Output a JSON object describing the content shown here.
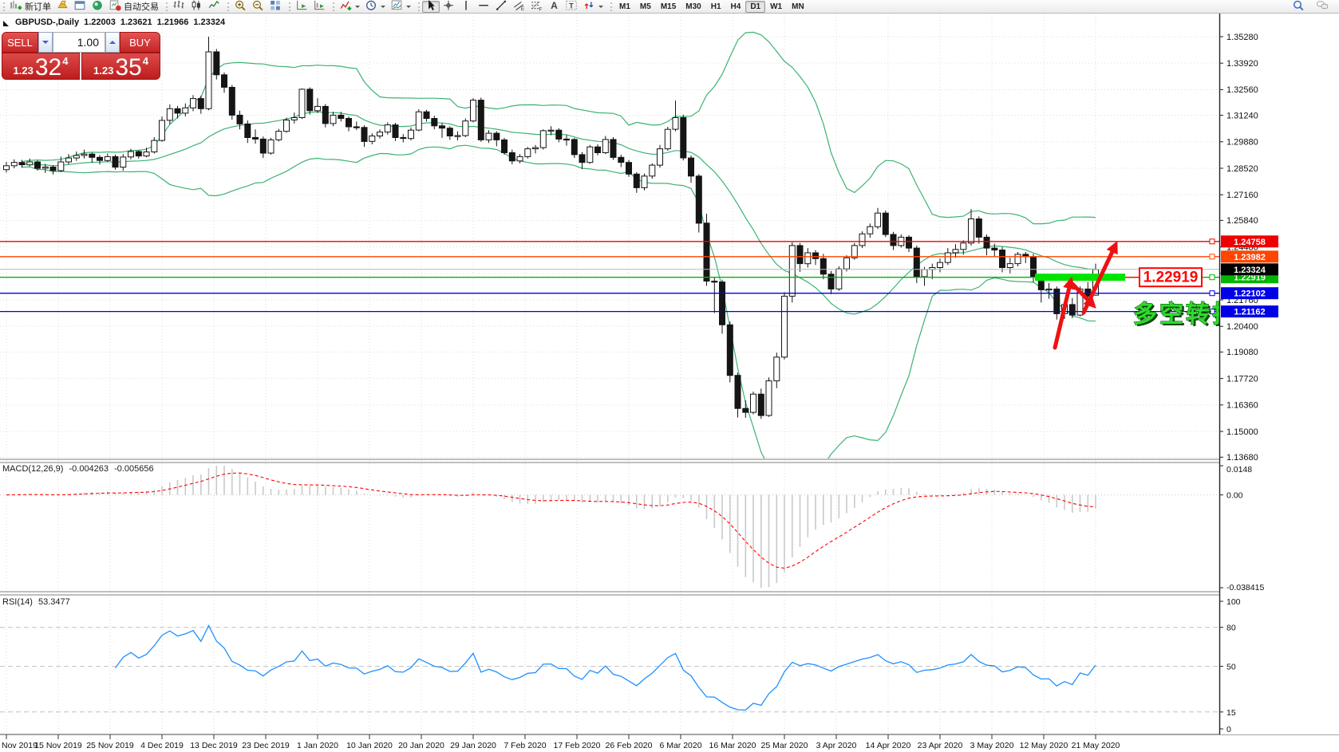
{
  "toolbar": {
    "groups": [
      {
        "items": [
          {
            "name": "new-order-button",
            "glyph": "new-order",
            "label": "新订单"
          },
          {
            "name": "market-button",
            "glyph": "gold"
          },
          {
            "name": "charts-window-button",
            "glyph": "window"
          },
          {
            "name": "news-button",
            "glyph": "sound"
          },
          {
            "name": "autotrading-button",
            "glyph": "autotrade",
            "label": "自动交易"
          }
        ]
      },
      {
        "items": [
          {
            "name": "bar-chart-button",
            "glyph": "bars"
          },
          {
            "name": "candlestick-chart-button",
            "glyph": "candles"
          },
          {
            "name": "line-chart-button",
            "glyph": "linechart"
          }
        ]
      },
      {
        "items": [
          {
            "name": "zoom-in-button",
            "glyph": "zoom-in"
          },
          {
            "name": "zoom-out-button",
            "glyph": "zoom-out"
          },
          {
            "name": "tile-windows-button",
            "glyph": "tile"
          }
        ]
      },
      {
        "items": [
          {
            "name": "auto-scroll-button",
            "glyph": "autoscroll"
          },
          {
            "name": "chart-shift-button",
            "glyph": "chartshift"
          }
        ]
      },
      {
        "items": [
          {
            "name": "indicators-button",
            "glyph": "indicator",
            "dropdown": true
          },
          {
            "name": "periods-button",
            "glyph": "clock",
            "dropdown": true
          },
          {
            "name": "templates-button",
            "glyph": "template",
            "dropdown": true
          }
        ]
      },
      {
        "items": [
          {
            "name": "cursor-tool-button",
            "glyph": "cursor",
            "active": true
          },
          {
            "name": "crosshair-tool-button",
            "glyph": "crosshair"
          },
          {
            "name": "vertical-line-tool-button",
            "glyph": "vline"
          },
          {
            "name": "horizontal-line-tool-button",
            "glyph": "hline"
          },
          {
            "name": "trendline-tool-button",
            "glyph": "trendline"
          },
          {
            "name": "equidistant-channel-tool-button",
            "glyph": "channel"
          },
          {
            "name": "fibonacci-tool-button",
            "glyph": "fibo"
          },
          {
            "name": "text-tool-button",
            "glyph": "text"
          },
          {
            "name": "text-label-tool-button",
            "glyph": "textlabel"
          },
          {
            "name": "arrows-tool-button",
            "glyph": "arrows",
            "dropdown": true
          }
        ]
      }
    ],
    "timeframes": [
      "M1",
      "M5",
      "M15",
      "M30",
      "H1",
      "H4",
      "D1",
      "W1",
      "MN"
    ],
    "active_timeframe": "D1",
    "right_icons": [
      {
        "name": "search-button",
        "glyph": "search"
      },
      {
        "name": "chat-button",
        "glyph": "chat"
      }
    ]
  },
  "symbol_bar": {
    "symbol": "GBPUSD-,Daily",
    "open": "1.22003",
    "high": "1.23621",
    "low": "1.21966",
    "close": "1.23324"
  },
  "trade_panel": {
    "sell_label": "SELL",
    "buy_label": "BUY",
    "volume": "1.00",
    "sell_price": {
      "small": "1.23",
      "big": "32",
      "sup": "4"
    },
    "buy_price": {
      "small": "1.23",
      "big": "35",
      "sup": "4"
    }
  },
  "chart_data": {
    "type": "candlestick",
    "title": "GBPUSD Daily with Bollinger Bands, MACD, RSI",
    "x_ticks": [
      "Nov 2019",
      "15 Nov 2019",
      "25 Nov 2019",
      "4 Dec 2019",
      "13 Dec 2019",
      "23 Dec 2019",
      "1 Jan 2020",
      "10 Jan 2020",
      "20 Jan 2020",
      "29 Jan 2020",
      "7 Feb 2020",
      "17 Feb 2020",
      "26 Feb 2020",
      "6 Mar 2020",
      "16 Mar 2020",
      "25 Mar 2020",
      "3 Apr 2020",
      "14 Apr 2020",
      "23 Apr 2020",
      "3 May 2020",
      "12 May 2020",
      "21 May 2020"
    ],
    "y_ticks": [
      "1.35280",
      "1.33920",
      "1.32560",
      "1.31240",
      "1.29880",
      "1.28520",
      "1.27160",
      "1.25840",
      "1.24480",
      "1.23120",
      "1.21760",
      "1.20400",
      "1.19080",
      "1.17720",
      "1.16360",
      "1.15000",
      "1.13680"
    ],
    "candles": [
      [
        1.2845,
        1.2885,
        1.283,
        1.2865
      ],
      [
        1.2865,
        1.2898,
        1.2852,
        1.2882
      ],
      [
        1.2882,
        1.2895,
        1.2855,
        1.287
      ],
      [
        1.287,
        1.2902,
        1.2862,
        1.2885
      ],
      [
        1.2885,
        1.2892,
        1.284,
        1.2852
      ],
      [
        1.2852,
        1.2875,
        1.2828,
        1.2858
      ],
      [
        1.2858,
        1.2868,
        1.282,
        1.284
      ],
      [
        1.284,
        1.2912,
        1.2832,
        1.2885
      ],
      [
        1.2885,
        1.2925,
        1.2872,
        1.2905
      ],
      [
        1.2905,
        1.2938,
        1.289,
        1.2918
      ],
      [
        1.2918,
        1.2948,
        1.2902,
        1.2925
      ],
      [
        1.2925,
        1.2932,
        1.288,
        1.2908
      ],
      [
        1.2908,
        1.292,
        1.2872,
        1.2892
      ],
      [
        1.2892,
        1.2928,
        1.2885,
        1.2912
      ],
      [
        1.2912,
        1.2922,
        1.2845,
        1.2858
      ],
      [
        1.2858,
        1.2925,
        1.284,
        1.291
      ],
      [
        1.291,
        1.2952,
        1.2898,
        1.2938
      ],
      [
        1.2938,
        1.2945,
        1.2902,
        1.2915
      ],
      [
        1.2915,
        1.2958,
        1.2908,
        1.2936
      ],
      [
        1.2936,
        1.3012,
        1.2928,
        1.2995
      ],
      [
        1.2995,
        1.3118,
        1.2988,
        1.3098
      ],
      [
        1.3098,
        1.318,
        1.3078,
        1.3158
      ],
      [
        1.3158,
        1.3172,
        1.3108,
        1.3135
      ],
      [
        1.3135,
        1.3185,
        1.3118,
        1.3162
      ],
      [
        1.3162,
        1.3228,
        1.3145,
        1.321
      ],
      [
        1.321,
        1.3225,
        1.3132,
        1.3158
      ],
      [
        1.3158,
        1.3528,
        1.315,
        1.345
      ],
      [
        1.345,
        1.3465,
        1.3308,
        1.3332
      ],
      [
        1.3332,
        1.3345,
        1.324,
        1.3268
      ],
      [
        1.3268,
        1.328,
        1.3102,
        1.3125
      ],
      [
        1.3125,
        1.3148,
        1.3052,
        1.308
      ],
      [
        1.308,
        1.3098,
        1.2982,
        1.301
      ],
      [
        1.301,
        1.3052,
        1.2978,
        1.3002
      ],
      [
        1.3002,
        1.3015,
        1.2905,
        1.293
      ],
      [
        1.293,
        1.3008,
        1.2922,
        1.2998
      ],
      [
        1.2998,
        1.3055,
        1.299,
        1.3042
      ],
      [
        1.3042,
        1.3112,
        1.3035,
        1.31
      ],
      [
        1.31,
        1.3138,
        1.3082,
        1.3112
      ],
      [
        1.3112,
        1.3262,
        1.3105,
        1.3258
      ],
      [
        1.3258,
        1.3268,
        1.3128,
        1.3148
      ],
      [
        1.3148,
        1.3212,
        1.3135,
        1.317
      ],
      [
        1.317,
        1.3182,
        1.3062,
        1.3082
      ],
      [
        1.3082,
        1.3142,
        1.3068,
        1.3125
      ],
      [
        1.3125,
        1.3142,
        1.3092,
        1.3108
      ],
      [
        1.3108,
        1.3118,
        1.3042,
        1.3065
      ],
      [
        1.3065,
        1.3092,
        1.3048,
        1.3062
      ],
      [
        1.3062,
        1.3072,
        1.2962,
        1.299
      ],
      [
        1.299,
        1.3032,
        1.2975,
        1.3018
      ],
      [
        1.3018,
        1.3052,
        1.3005,
        1.3038
      ],
      [
        1.3038,
        1.3088,
        1.3025,
        1.3075
      ],
      [
        1.3075,
        1.3085,
        1.2992,
        1.301
      ],
      [
        1.301,
        1.3028,
        1.2985,
        1.3005
      ],
      [
        1.3005,
        1.3062,
        1.2995,
        1.3048
      ],
      [
        1.3048,
        1.3155,
        1.3042,
        1.3142
      ],
      [
        1.3142,
        1.3152,
        1.3092,
        1.3108
      ],
      [
        1.3108,
        1.3122,
        1.3052,
        1.307
      ],
      [
        1.307,
        1.3085,
        1.3008,
        1.3058
      ],
      [
        1.3058,
        1.3068,
        1.2998,
        1.3018
      ],
      [
        1.3018,
        1.3042,
        1.2995,
        1.302
      ],
      [
        1.302,
        1.3108,
        1.3012,
        1.3095
      ],
      [
        1.3095,
        1.3212,
        1.3088,
        1.3202
      ],
      [
        1.3202,
        1.3215,
        1.2988,
        1.2998
      ],
      [
        1.2998,
        1.3048,
        1.2982,
        1.3032
      ],
      [
        1.3032,
        1.3042,
        1.2965,
        1.2998
      ],
      [
        1.2998,
        1.3008,
        1.2922,
        1.2932
      ],
      [
        1.2932,
        1.2948,
        1.2872,
        1.289
      ],
      [
        1.289,
        1.2925,
        1.2878,
        1.2912
      ],
      [
        1.2912,
        1.2962,
        1.2902,
        1.2952
      ],
      [
        1.2952,
        1.2972,
        1.2928,
        1.2958
      ],
      [
        1.2958,
        1.3052,
        1.2948,
        1.3045
      ],
      [
        1.3045,
        1.3068,
        1.3022,
        1.3048
      ],
      [
        1.3048,
        1.3058,
        1.2985,
        1.3002
      ],
      [
        1.3002,
        1.3022,
        1.2968,
        1.3
      ],
      [
        1.3,
        1.3008,
        1.2905,
        1.2922
      ],
      [
        1.2922,
        1.2935,
        1.2848,
        1.2882
      ],
      [
        1.2882,
        1.2972,
        1.2875,
        1.2962
      ],
      [
        1.2962,
        1.2975,
        1.2918,
        1.2932
      ],
      [
        1.2932,
        1.3018,
        1.2925,
        1.3
      ],
      [
        1.3,
        1.3012,
        1.2895,
        1.2908
      ],
      [
        1.2908,
        1.2922,
        1.2858,
        1.2882
      ],
      [
        1.2882,
        1.2895,
        1.2808,
        1.2822
      ],
      [
        1.2822,
        1.2832,
        1.2726,
        1.2752
      ],
      [
        1.2752,
        1.2825,
        1.2738,
        1.2812
      ],
      [
        1.2812,
        1.2878,
        1.2798,
        1.2868
      ],
      [
        1.2868,
        1.2972,
        1.2855,
        1.2952
      ],
      [
        1.2952,
        1.3065,
        1.2942,
        1.3052
      ],
      [
        1.3052,
        1.32,
        1.3042,
        1.3112
      ],
      [
        1.3112,
        1.3128,
        1.2892,
        1.2905
      ],
      [
        1.2905,
        1.2918,
        1.2778,
        1.2812
      ],
      [
        1.2812,
        1.2822,
        1.2522,
        1.257
      ],
      [
        1.257,
        1.2618,
        1.2248,
        1.2272
      ],
      [
        1.2272,
        1.2295,
        1.2108,
        1.2268
      ],
      [
        1.2268,
        1.228,
        1.2002,
        1.2048
      ],
      [
        1.2048,
        1.2065,
        1.1752,
        1.1788
      ],
      [
        1.1788,
        1.1802,
        1.1572,
        1.1618
      ],
      [
        1.1618,
        1.166,
        1.157,
        1.1598
      ],
      [
        1.1598,
        1.1705,
        1.1588,
        1.1692
      ],
      [
        1.1692,
        1.172,
        1.1565,
        1.1582
      ],
      [
        1.1582,
        1.1778,
        1.1575,
        1.176
      ],
      [
        1.176,
        1.1905,
        1.1722,
        1.1882
      ],
      [
        1.1882,
        1.2215,
        1.187,
        1.2195
      ],
      [
        1.2195,
        1.2472,
        1.2162,
        1.2455
      ],
      [
        1.2455,
        1.2468,
        1.232,
        1.2362
      ],
      [
        1.2362,
        1.2442,
        1.2342,
        1.2418
      ],
      [
        1.2418,
        1.2432,
        1.2355,
        1.2388
      ],
      [
        1.2388,
        1.2412,
        1.2282,
        1.2308
      ],
      [
        1.2308,
        1.2325,
        1.2205,
        1.2232
      ],
      [
        1.2232,
        1.2348,
        1.2222,
        1.2335
      ],
      [
        1.2335,
        1.2405,
        1.2322,
        1.2392
      ],
      [
        1.2392,
        1.2468,
        1.2382,
        1.2455
      ],
      [
        1.2455,
        1.2528,
        1.2442,
        1.2515
      ],
      [
        1.2515,
        1.2568,
        1.2495,
        1.2552
      ],
      [
        1.2552,
        1.2648,
        1.254,
        1.2622
      ],
      [
        1.2622,
        1.2635,
        1.2498,
        1.2512
      ],
      [
        1.2512,
        1.2525,
        1.2432,
        1.2455
      ],
      [
        1.2455,
        1.2512,
        1.2445,
        1.2498
      ],
      [
        1.2498,
        1.2508,
        1.2422,
        1.2442
      ],
      [
        1.2442,
        1.2455,
        1.2262,
        1.2295
      ],
      [
        1.2295,
        1.2345,
        1.2248,
        1.2332
      ],
      [
        1.2332,
        1.2362,
        1.2282,
        1.2342
      ],
      [
        1.2342,
        1.2388,
        1.2318,
        1.2368
      ],
      [
        1.2368,
        1.2442,
        1.2355,
        1.2418
      ],
      [
        1.2418,
        1.2462,
        1.2392,
        1.2435
      ],
      [
        1.2435,
        1.2482,
        1.2408,
        1.2468
      ],
      [
        1.2468,
        1.2642,
        1.2455,
        1.2592
      ],
      [
        1.2592,
        1.2605,
        1.2465,
        1.2498
      ],
      [
        1.2498,
        1.2512,
        1.2405,
        1.2442
      ],
      [
        1.2442,
        1.2465,
        1.2398,
        1.2432
      ],
      [
        1.2432,
        1.2448,
        1.2318,
        1.2342
      ],
      [
        1.2342,
        1.2392,
        1.2312,
        1.2362
      ],
      [
        1.2362,
        1.2422,
        1.2348,
        1.241
      ],
      [
        1.241,
        1.2422,
        1.2365,
        1.2398
      ],
      [
        1.2398,
        1.2412,
        1.2265,
        1.2295
      ],
      [
        1.2295,
        1.2308,
        1.2162,
        1.2228
      ],
      [
        1.2228,
        1.2262,
        1.2182,
        1.2232
      ],
      [
        1.2232,
        1.2245,
        1.2075,
        1.2105
      ],
      [
        1.2105,
        1.2165,
        1.2078,
        1.2152
      ],
      [
        1.2152,
        1.2185,
        1.2082,
        1.2098
      ],
      [
        1.2098,
        1.2245,
        1.2092,
        1.2232
      ],
      [
        1.2232,
        1.2268,
        1.2158,
        1.2195
      ],
      [
        1.22,
        1.2362,
        1.2197,
        1.2332
      ]
    ],
    "bollinger": {
      "period": 20,
      "deviation": 2,
      "color": "#3cb371"
    },
    "hlines": [
      {
        "price": 1.24758,
        "label": "1.24758",
        "color": "#ee0000"
      },
      {
        "price": 1.23982,
        "label": "1.23982",
        "color": "#ff4500"
      },
      {
        "price": 1.22919,
        "label": "1.22919",
        "color": "#00b400"
      },
      {
        "price": 1.22102,
        "label": "1.22102",
        "color": "#0000e6"
      },
      {
        "price": 1.21162,
        "label": "1.21162",
        "color": "#0000e6"
      },
      {
        "price": 1.23324,
        "label": "1.23324",
        "color": "#b8b8b8",
        "style": "current"
      }
    ],
    "annotations": {
      "support_zone": {
        "price": 1.22919,
        "highlight_color": "#00e400"
      },
      "price_label": {
        "text": "1.22919",
        "color": "#ff0000"
      },
      "note_text": {
        "text": "多空转折点",
        "color": "#2bdd2b"
      },
      "arrows_color": "#ee1111"
    },
    "indicators": {
      "macd": {
        "label": "MACD(12,26,9)",
        "values": [
          "-0.004263",
          "-0.005656"
        ],
        "params": [
          12,
          26,
          9
        ],
        "axis_labels": [
          "0.0148",
          "0.00",
          "-0.038415"
        ],
        "histogram_color": "#c9c9c9",
        "signal_color": "#ff0000"
      },
      "rsi": {
        "label": "RSI(14)",
        "value": "53.3477",
        "period": 14,
        "levels": [
          80,
          50,
          15
        ],
        "axis_labels": [
          "100",
          "80",
          "50",
          "15",
          "0"
        ],
        "color": "#1e90ff"
      }
    }
  }
}
